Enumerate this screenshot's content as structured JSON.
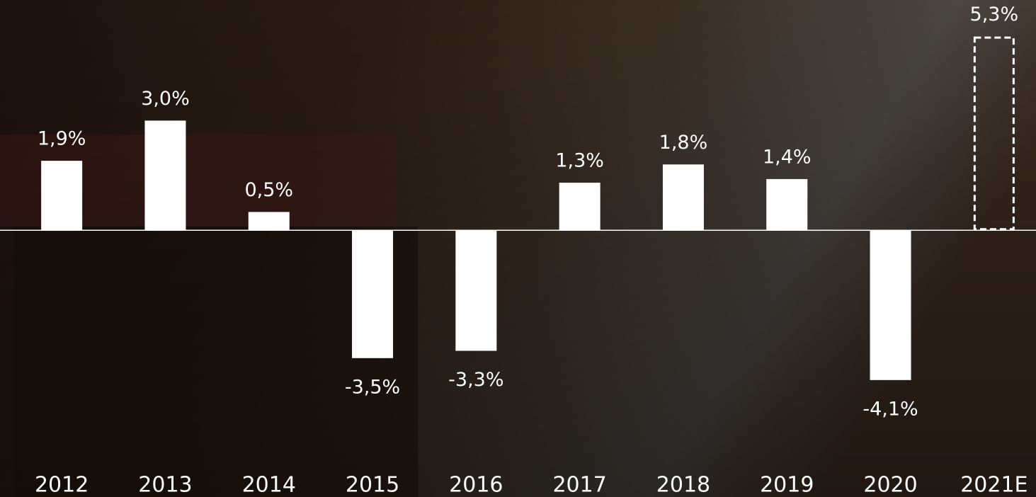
{
  "chart_data": {
    "type": "bar",
    "categories": [
      "2012",
      "2013",
      "2014",
      "2015",
      "2016",
      "2017",
      "2018",
      "2019",
      "2020",
      "2021E"
    ],
    "values": [
      1.9,
      3.0,
      0.5,
      -3.5,
      -3.3,
      1.3,
      1.8,
      1.4,
      -4.1,
      5.3
    ],
    "value_labels": [
      "1,9%",
      "3,0%",
      "0,5%",
      "-3,5%",
      "-3,3%",
      "1,3%",
      "1,8%",
      "1,4%",
      "-4,1%",
      "5,3%"
    ],
    "dashed": [
      false,
      false,
      false,
      false,
      false,
      false,
      false,
      false,
      false,
      true
    ],
    "color": "#ffffff",
    "ylim": [
      -7.3,
      6.3
    ],
    "grid": false
  }
}
